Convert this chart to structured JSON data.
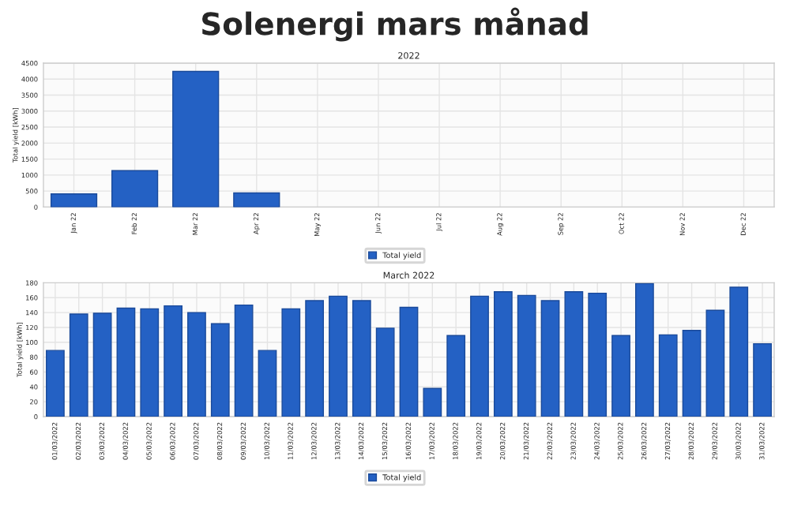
{
  "chart_data": [
    {
      "type": "bar",
      "title": "Solenergi mars månad",
      "subtitle": "2022",
      "ylabel": "Total yield [kWh]",
      "categories": [
        "Jan 22",
        "Feb 22",
        "Mar 22",
        "Apr 22",
        "May 22",
        "Jun 22",
        "Jul 22",
        "Aug 22",
        "Sep 22",
        "Oct 22",
        "Nov 22",
        "Dec 22"
      ],
      "series": [
        {
          "name": "Total yield",
          "color": "#2461c4",
          "values": [
            410,
            1140,
            4240,
            440,
            null,
            null,
            null,
            null,
            null,
            null,
            null,
            null
          ]
        }
      ],
      "ylim": [
        0,
        4500
      ],
      "yticks": [
        0,
        500,
        1000,
        1500,
        2000,
        2500,
        3000,
        3500,
        4000,
        4500
      ],
      "grid": true,
      "legend": "bottom"
    },
    {
      "type": "bar",
      "title": "March 2022",
      "ylabel": "Total yield [kWh]",
      "categories": [
        "01/03/2022",
        "02/03/2022",
        "03/03/2022",
        "04/03/2022",
        "05/03/2022",
        "06/03/2022",
        "07/03/2022",
        "08/03/2022",
        "09/03/2022",
        "10/03/2022",
        "11/03/2022",
        "12/03/2022",
        "13/03/2022",
        "14/03/2022",
        "15/03/2022",
        "16/03/2022",
        "17/03/2022",
        "18/03/2022",
        "19/03/2022",
        "20/03/2022",
        "21/03/2022",
        "22/03/2022",
        "23/03/2022",
        "24/03/2022",
        "25/03/2022",
        "26/03/2022",
        "27/03/2022",
        "28/03/2022",
        "29/03/2022",
        "30/03/2022",
        "31/03/2022"
      ],
      "series": [
        {
          "name": "Total yield",
          "color": "#2461c4",
          "values": [
            89,
            138,
            139,
            146,
            145,
            149,
            140,
            125,
            150,
            89,
            145,
            156,
            162,
            156,
            119,
            147,
            38,
            109,
            162,
            168,
            163,
            156,
            168,
            166,
            109,
            179,
            110,
            116,
            143,
            174,
            98
          ]
        }
      ],
      "ylim": [
        0,
        180
      ],
      "yticks": [
        0,
        20,
        40,
        60,
        80,
        100,
        120,
        140,
        160,
        180
      ],
      "grid": true,
      "legend": "bottom"
    }
  ]
}
